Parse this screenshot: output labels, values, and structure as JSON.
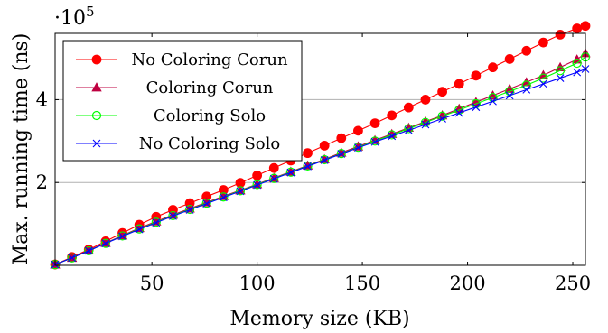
{
  "chart_data": {
    "type": "line",
    "xlabel": "Memory size (KB)",
    "ylabel": "Max. running time (ns)",
    "y_multiplier_base": "·10",
    "y_multiplier_exp": "5",
    "xlim": [
      4,
      256
    ],
    "ylim": [
      0,
      5.6
    ],
    "x_ticks": [
      50,
      100,
      150,
      200,
      250
    ],
    "y_ticks": [
      2,
      4
    ],
    "grid": "horizontal",
    "legend_position": "top-left",
    "x": [
      4,
      12,
      20,
      28,
      36,
      44,
      52,
      60,
      68,
      76,
      84,
      92,
      100,
      108,
      116,
      124,
      132,
      140,
      148,
      156,
      164,
      172,
      180,
      188,
      196,
      204,
      212,
      220,
      228,
      236,
      244,
      252,
      256
    ],
    "series": [
      {
        "name": "No Coloring Corun",
        "color": "#ff0000",
        "marker": "filled-circle",
        "values": [
          0.02,
          0.2,
          0.38,
          0.58,
          0.78,
          0.98,
          1.17,
          1.34,
          1.5,
          1.66,
          1.82,
          1.99,
          2.17,
          2.35,
          2.53,
          2.71,
          2.89,
          3.07,
          3.25,
          3.43,
          3.62,
          3.81,
          4.0,
          4.19,
          4.38,
          4.58,
          4.78,
          4.98,
          5.18,
          5.38,
          5.57,
          5.72,
          5.78
        ]
      },
      {
        "name": "Coloring Corun",
        "color": "#bf0040",
        "marker": "filled-triangle",
        "values": [
          0.02,
          0.18,
          0.36,
          0.54,
          0.72,
          0.9,
          1.06,
          1.22,
          1.37,
          1.52,
          1.67,
          1.81,
          1.96,
          2.11,
          2.26,
          2.41,
          2.56,
          2.72,
          2.87,
          3.02,
          3.17,
          3.32,
          3.47,
          3.62,
          3.78,
          3.94,
          4.1,
          4.26,
          4.42,
          4.59,
          4.78,
          4.97,
          5.12
        ]
      },
      {
        "name": "Coloring Solo",
        "color": "#00ff00",
        "marker": "open-circle",
        "values": [
          0.02,
          0.18,
          0.35,
          0.53,
          0.71,
          0.88,
          1.04,
          1.2,
          1.35,
          1.5,
          1.65,
          1.8,
          1.95,
          2.1,
          2.25,
          2.4,
          2.55,
          2.7,
          2.85,
          3.0,
          3.15,
          3.3,
          3.45,
          3.6,
          3.75,
          3.9,
          4.05,
          4.2,
          4.35,
          4.52,
          4.7,
          4.88,
          5.03
        ]
      },
      {
        "name": "No Coloring Solo",
        "color": "#0000ff",
        "marker": "x",
        "values": [
          0.02,
          0.18,
          0.35,
          0.53,
          0.7,
          0.87,
          1.03,
          1.19,
          1.34,
          1.49,
          1.64,
          1.79,
          1.94,
          2.09,
          2.24,
          2.39,
          2.54,
          2.69,
          2.84,
          2.98,
          3.12,
          3.26,
          3.4,
          3.54,
          3.68,
          3.82,
          3.96,
          4.1,
          4.24,
          4.38,
          4.52,
          4.66,
          4.74
        ]
      }
    ]
  }
}
